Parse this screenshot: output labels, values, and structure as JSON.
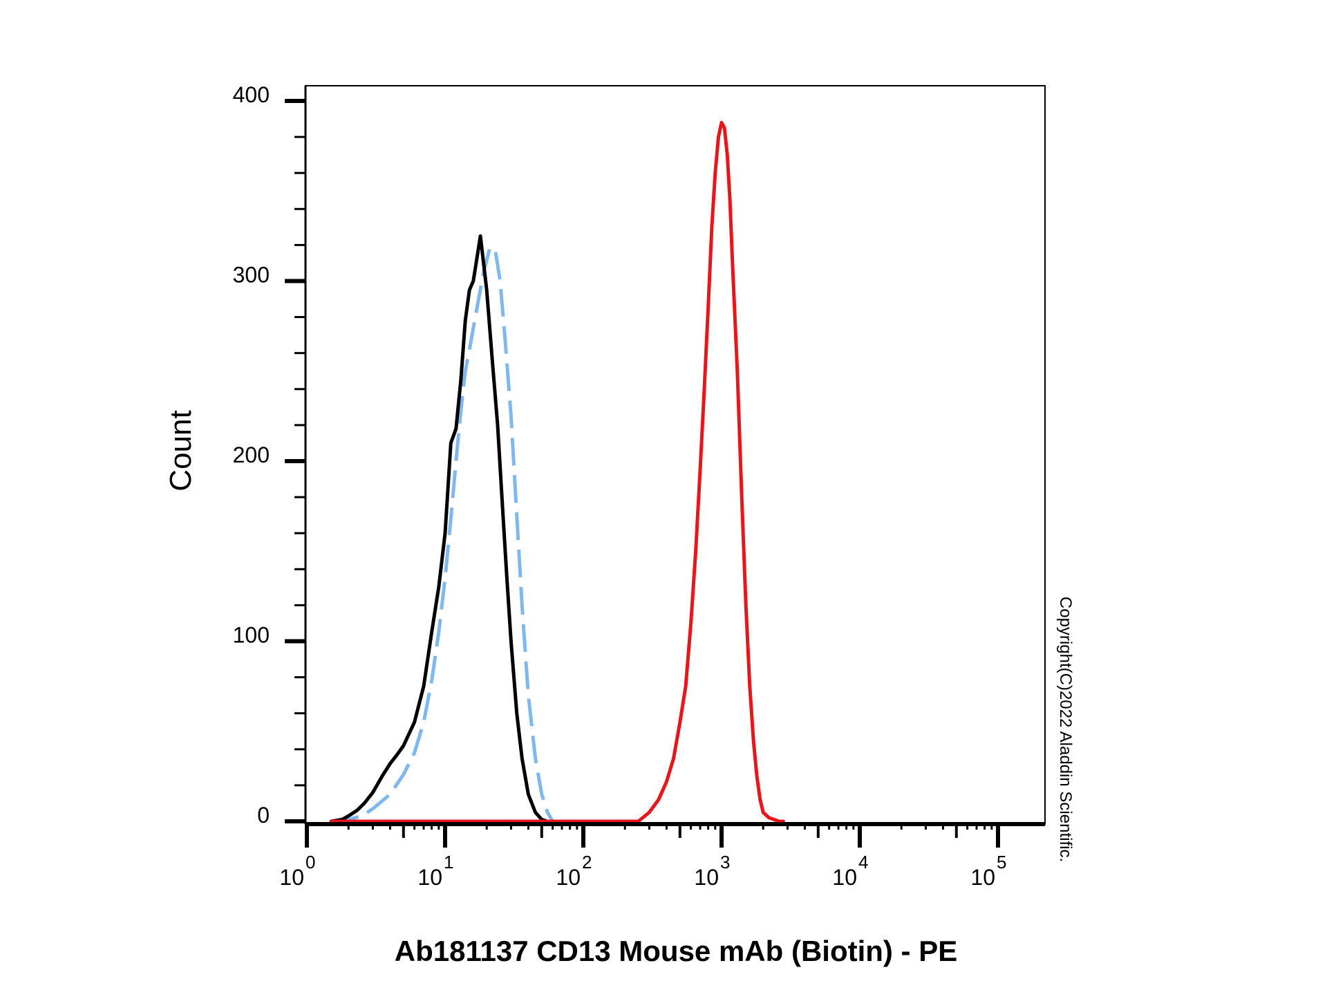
{
  "chart_data": {
    "type": "line",
    "title": "",
    "xlabel": "Ab181137 CD13 Mouse mAb (Biotin) - PE",
    "ylabel": "Count",
    "x_scale": "log",
    "xlim": [
      0.55,
      130000
    ],
    "ylim": [
      0,
      400
    ],
    "y_ticks": [
      0,
      100,
      200,
      300,
      400
    ],
    "x_ticks": [
      {
        "base": "10",
        "exp": "0",
        "value": 1
      },
      {
        "base": "10",
        "exp": "1",
        "value": 10
      },
      {
        "base": "10",
        "exp": "2",
        "value": 100
      },
      {
        "base": "10",
        "exp": "3",
        "value": 1000
      },
      {
        "base": "10",
        "exp": "4",
        "value": 10000
      },
      {
        "base": "10",
        "exp": "5",
        "value": 100000
      }
    ],
    "grid": false,
    "legend": "none",
    "copyright": "Copyright(C)2022 Aladdin Scientific.",
    "series": [
      {
        "color": "#7fb8ee",
        "style": "dashed",
        "x": [
          1.5,
          2.0,
          2.5,
          3.0,
          4.0,
          5.0,
          6.0,
          7.0,
          8.0,
          9.0,
          10.0,
          11.0,
          12.0,
          13.0,
          14.0,
          15.0,
          17.0,
          19.0,
          21.0,
          23.0,
          25.0,
          27.0,
          30.0,
          33.0,
          36.0,
          40.0,
          45.0,
          50.0,
          55.0,
          60.0
        ],
        "y": [
          0,
          1,
          3,
          7,
          15,
          26,
          38,
          55,
          78,
          105,
          135,
          168,
          200,
          228,
          250,
          262,
          285,
          305,
          318,
          318,
          300,
          270,
          225,
          170,
          120,
          70,
          35,
          15,
          5,
          0
        ]
      },
      {
        "color": "#000000",
        "style": "solid",
        "x": [
          1.5,
          1.8,
          2.0,
          2.3,
          2.6,
          3.0,
          3.5,
          4.0,
          4.5,
          5.0,
          6.0,
          7.0,
          8.0,
          9.0,
          10.0,
          11.0,
          12.0,
          13.0,
          14.0,
          15.0,
          16.0,
          18.0,
          20.0,
          22.0,
          24.0,
          26.0,
          28.0,
          30.0,
          33.0,
          36.0,
          40.0,
          45.0,
          50.0,
          55.0
        ],
        "y": [
          0,
          1,
          3,
          6,
          10,
          16,
          25,
          32,
          37,
          42,
          55,
          75,
          105,
          130,
          160,
          210,
          218,
          245,
          278,
          295,
          300,
          325,
          295,
          255,
          220,
          175,
          135,
          100,
          60,
          35,
          15,
          5,
          1,
          0
        ]
      },
      {
        "color": "#e8151b",
        "style": "solid",
        "x": [
          1.5,
          250,
          300,
          350,
          400,
          450,
          500,
          550,
          600,
          650,
          700,
          750,
          800,
          850,
          900,
          950,
          1000,
          1050,
          1100,
          1150,
          1200,
          1300,
          1400,
          1500,
          1600,
          1700,
          1800,
          1900,
          2000,
          2200,
          2400,
          2600,
          2800
        ],
        "y": [
          0,
          0,
          5,
          12,
          22,
          35,
          55,
          75,
          110,
          150,
          195,
          240,
          285,
          330,
          360,
          380,
          388,
          385,
          370,
          345,
          310,
          250,
          180,
          120,
          75,
          45,
          25,
          12,
          5,
          2,
          1,
          0,
          0
        ]
      }
    ]
  }
}
